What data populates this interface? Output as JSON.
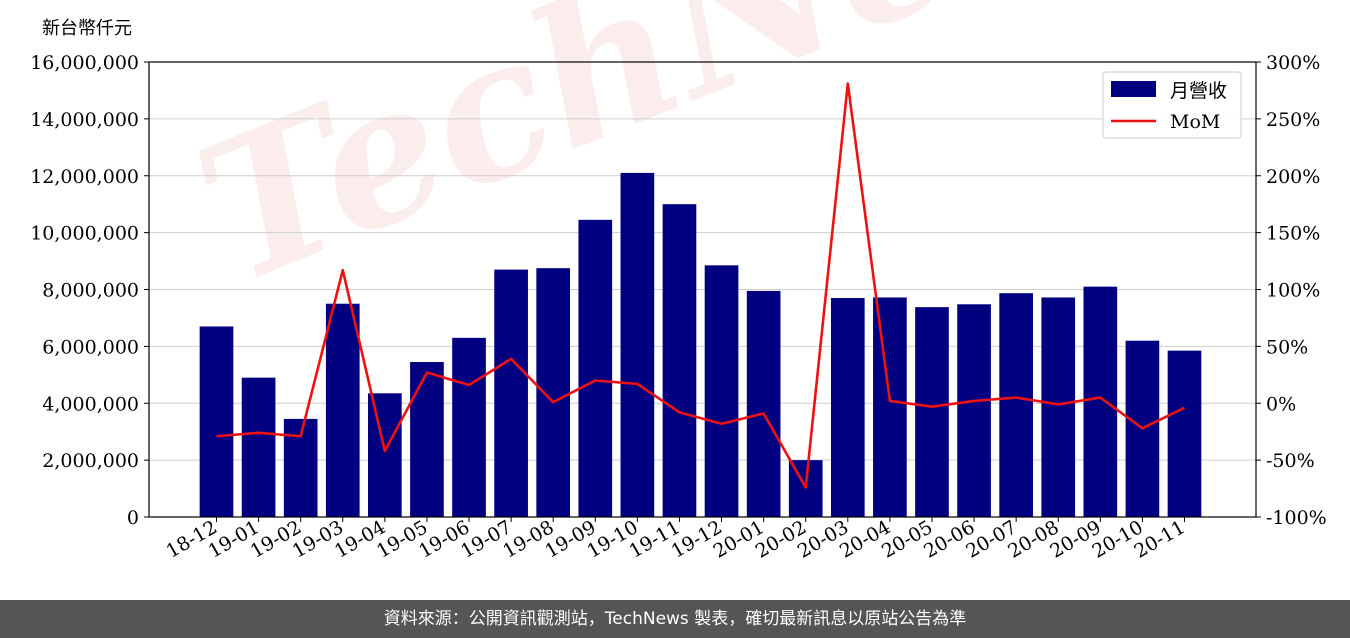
{
  "unit_label": "新台幣仟元",
  "watermark": "TechNews",
  "footer": "資料來源：公開資訊觀測站，TechNews 製表，確切最新訊息以原站公告為準",
  "chart_data": {
    "type": "bar",
    "categories": [
      "18-12",
      "19-01",
      "19-02",
      "19-03",
      "19-04",
      "19-05",
      "19-06",
      "19-07",
      "19-08",
      "19-09",
      "19-10",
      "19-11",
      "19-12",
      "20-01",
      "20-02",
      "20-03",
      "20-04",
      "20-05",
      "20-06",
      "20-07",
      "20-08",
      "20-09",
      "20-10",
      "20-11"
    ],
    "series": [
      {
        "name": "月營收",
        "type": "bar",
        "axis": "left",
        "color": "#000080",
        "values": [
          6700000,
          4900000,
          3450000,
          7500000,
          4350000,
          5450000,
          6300000,
          8700000,
          8750000,
          10450000,
          12100000,
          11000000,
          8850000,
          7950000,
          2000000,
          7700000,
          7720000,
          7380000,
          7480000,
          7870000,
          7720000,
          8100000,
          6200000,
          5850000
        ]
      },
      {
        "name": "MoM",
        "type": "line",
        "axis": "right",
        "color": "#ee1111",
        "values": [
          -29,
          -26,
          -29,
          117,
          -42,
          27,
          16,
          39,
          1,
          20,
          17,
          -8,
          -18,
          -9,
          -74,
          281,
          2,
          -3,
          2,
          5,
          -1,
          5,
          -22,
          -4
        ]
      }
    ],
    "y_left": {
      "range": [
        0,
        16000000
      ],
      "ticks": [
        0,
        2000000,
        4000000,
        6000000,
        8000000,
        10000000,
        12000000,
        14000000,
        16000000
      ],
      "tick_labels": [
        "0",
        "2,000,000",
        "4,000,000",
        "6,000,000",
        "8,000,000",
        "10,000,000",
        "12,000,000",
        "14,000,000",
        "16,000,000"
      ]
    },
    "y_right": {
      "range": [
        -100,
        300
      ],
      "ticks": [
        -100,
        -50,
        0,
        50,
        100,
        150,
        200,
        250,
        300
      ],
      "tick_labels": [
        "-100%",
        "-50%",
        "0%",
        "50%",
        "100%",
        "150%",
        "200%",
        "250%",
        "300%"
      ]
    },
    "grid": "horizontal",
    "legend": "top-right"
  }
}
